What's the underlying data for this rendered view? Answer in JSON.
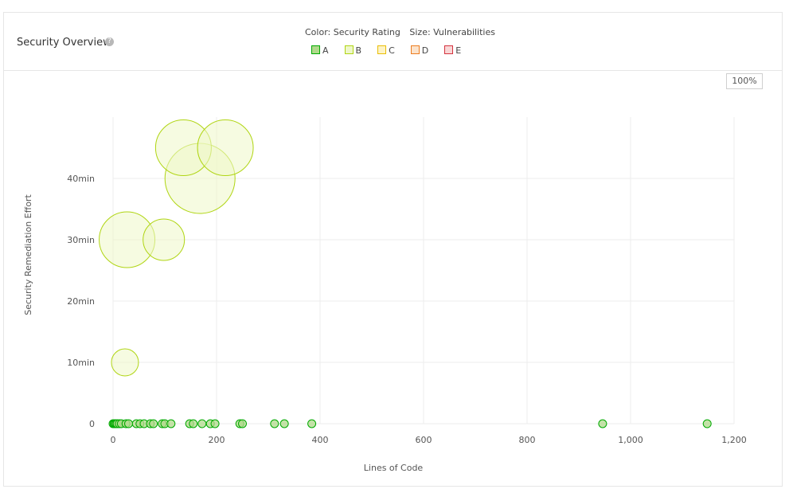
{
  "widget": {
    "title": "Security Overview",
    "help_icon": "question-circle-icon",
    "legend_caption": {
      "color": "Color: Security Rating",
      "size": "Size: Vulnerabilities"
    },
    "zoom_label": "100%"
  },
  "legend": [
    {
      "label": "A",
      "fill": "#b0d98b",
      "stroke": "#00aa00"
    },
    {
      "label": "B",
      "fill": "#eef7c8",
      "stroke": "#b0d513"
    },
    {
      "label": "C",
      "fill": "#fdf3c5",
      "stroke": "#eabe06"
    },
    {
      "label": "D",
      "fill": "#fbe3cc",
      "stroke": "#ed7d20"
    },
    {
      "label": "E",
      "fill": "#f9d6d6",
      "stroke": "#d4333f"
    }
  ],
  "chart_data": {
    "type": "scatter",
    "xlabel": "Lines of Code",
    "ylabel": "Security Remediation Effort",
    "xlim": [
      0,
      1200
    ],
    "ylim": [
      0,
      50
    ],
    "x_ticks": [
      0,
      200,
      400,
      600,
      800,
      1000,
      1200
    ],
    "x_tick_labels": [
      "0",
      "200",
      "400",
      "600",
      "800",
      "1,000",
      "1,200"
    ],
    "y_ticks": [
      0,
      10,
      20,
      30,
      40
    ],
    "y_tick_labels": [
      "0",
      "10min",
      "20min",
      "30min",
      "40min"
    ],
    "grid": true,
    "series": [
      {
        "rating": "A",
        "points": [
          {
            "x": 0,
            "y": 0,
            "vulnerabilities": 0
          },
          {
            "x": 2,
            "y": 0,
            "vulnerabilities": 0
          },
          {
            "x": 4,
            "y": 0,
            "vulnerabilities": 0
          },
          {
            "x": 6,
            "y": 0,
            "vulnerabilities": 0
          },
          {
            "x": 8,
            "y": 0,
            "vulnerabilities": 0
          },
          {
            "x": 12,
            "y": 0,
            "vulnerabilities": 0
          },
          {
            "x": 16,
            "y": 0,
            "vulnerabilities": 0
          },
          {
            "x": 25,
            "y": 0,
            "vulnerabilities": 0
          },
          {
            "x": 30,
            "y": 0,
            "vulnerabilities": 0
          },
          {
            "x": 45,
            "y": 0,
            "vulnerabilities": 0
          },
          {
            "x": 52,
            "y": 0,
            "vulnerabilities": 0
          },
          {
            "x": 60,
            "y": 0,
            "vulnerabilities": 0
          },
          {
            "x": 72,
            "y": 0,
            "vulnerabilities": 0
          },
          {
            "x": 78,
            "y": 0,
            "vulnerabilities": 0
          },
          {
            "x": 95,
            "y": 0,
            "vulnerabilities": 0
          },
          {
            "x": 100,
            "y": 0,
            "vulnerabilities": 0
          },
          {
            "x": 112,
            "y": 0,
            "vulnerabilities": 0
          },
          {
            "x": 148,
            "y": 0,
            "vulnerabilities": 0
          },
          {
            "x": 155,
            "y": 0,
            "vulnerabilities": 0
          },
          {
            "x": 172,
            "y": 0,
            "vulnerabilities": 0
          },
          {
            "x": 188,
            "y": 0,
            "vulnerabilities": 0
          },
          {
            "x": 197,
            "y": 0,
            "vulnerabilities": 0
          },
          {
            "x": 245,
            "y": 0,
            "vulnerabilities": 0
          },
          {
            "x": 250,
            "y": 0,
            "vulnerabilities": 0
          },
          {
            "x": 312,
            "y": 0,
            "vulnerabilities": 0
          },
          {
            "x": 331,
            "y": 0,
            "vulnerabilities": 0
          },
          {
            "x": 384,
            "y": 0,
            "vulnerabilities": 0
          },
          {
            "x": 946,
            "y": 0,
            "vulnerabilities": 0
          },
          {
            "x": 1148,
            "y": 0,
            "vulnerabilities": 0
          }
        ]
      },
      {
        "rating": "B",
        "points": [
          {
            "x": 23,
            "y": 10,
            "vulnerabilities": 1
          },
          {
            "x": 27,
            "y": 30,
            "vulnerabilities": 3
          },
          {
            "x": 98,
            "y": 30,
            "vulnerabilities": 2
          },
          {
            "x": 136,
            "y": 45,
            "vulnerabilities": 3
          },
          {
            "x": 217,
            "y": 45,
            "vulnerabilities": 3
          },
          {
            "x": 168,
            "y": 40,
            "vulnerabilities": 4
          }
        ]
      }
    ]
  }
}
